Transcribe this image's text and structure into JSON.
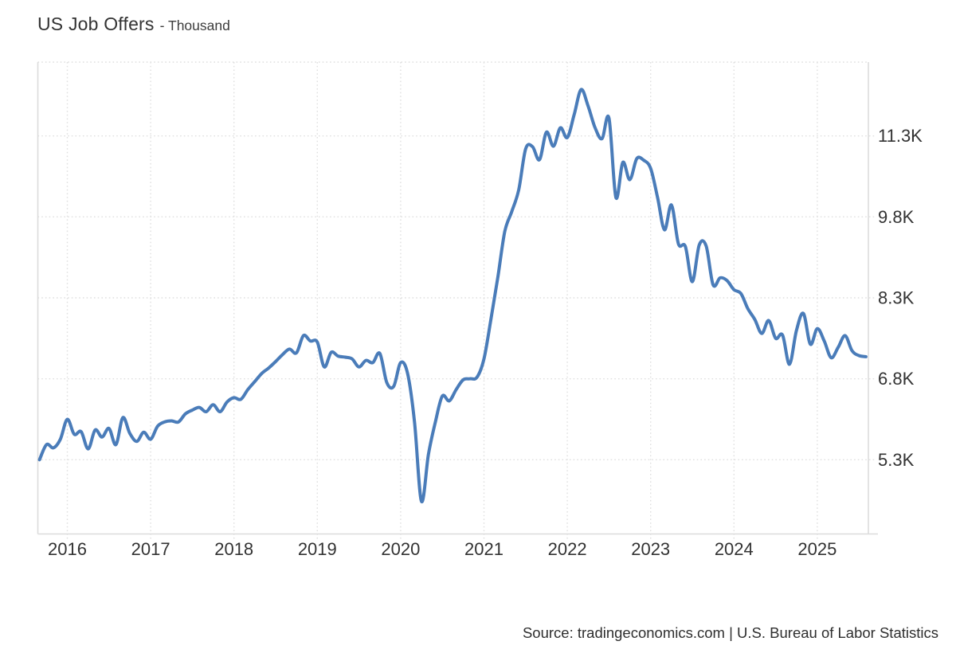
{
  "title": {
    "main": "US Job Offers",
    "unit": "- Thousand"
  },
  "source": "Source: tradingeconomics.com | U.S. Bureau of Labor Statistics",
  "colors": {
    "line": "#4a7cb9",
    "grid_dotted": "#dfdfdf",
    "border": "#dcdcdc",
    "axis_text": "#333333",
    "title_text": "#333333"
  },
  "chart_data": {
    "type": "line",
    "title": "US Job Offers",
    "unit": "Thousand",
    "grid": "dotted",
    "legend": "none",
    "y_axis_side": "right",
    "x_ticks": [
      "2016",
      "2017",
      "2018",
      "2019",
      "2020",
      "2021",
      "2022",
      "2023",
      "2024",
      "2025"
    ],
    "y_ticks": [
      {
        "value": 5300,
        "label": "5.3K"
      },
      {
        "value": 6800,
        "label": "6.8K"
      },
      {
        "value": 8300,
        "label": "8.3K"
      },
      {
        "value": 9800,
        "label": "9.8K"
      },
      {
        "value": 11300,
        "label": "11.3K"
      }
    ],
    "series": [
      {
        "name": "US Job Offers",
        "unit": "Thousand",
        "frequency": "monthly",
        "start": "2015-09",
        "end": "2025-08",
        "values": [
          5300,
          5580,
          5520,
          5680,
          6050,
          5770,
          5820,
          5500,
          5850,
          5720,
          5880,
          5580,
          6080,
          5790,
          5640,
          5810,
          5680,
          5920,
          6000,
          6020,
          6000,
          6150,
          6220,
          6270,
          6190,
          6320,
          6190,
          6370,
          6450,
          6420,
          6600,
          6750,
          6900,
          7000,
          7120,
          7250,
          7350,
          7280,
          7600,
          7500,
          7480,
          7020,
          7290,
          7220,
          7200,
          7170,
          7020,
          7140,
          7100,
          7270,
          6730,
          6660,
          7100,
          6900,
          6000,
          4530,
          5400,
          6000,
          6480,
          6390,
          6600,
          6780,
          6800,
          6830,
          7170,
          7900,
          8680,
          9530,
          9900,
          10300,
          11060,
          11100,
          10860,
          11370,
          11110,
          11450,
          11270,
          11700,
          12160,
          11850,
          11450,
          11250,
          11630,
          10160,
          10810,
          10490,
          10880,
          10850,
          10700,
          10160,
          9560,
          10020,
          9300,
          9250,
          8600,
          9280,
          9260,
          8540,
          8670,
          8620,
          8450,
          8380,
          8100,
          7900,
          7640,
          7880,
          7550,
          7610,
          7070,
          7700,
          8010,
          7440,
          7730,
          7500,
          7190,
          7380,
          7600,
          7320,
          7230,
          7210
        ]
      }
    ]
  }
}
